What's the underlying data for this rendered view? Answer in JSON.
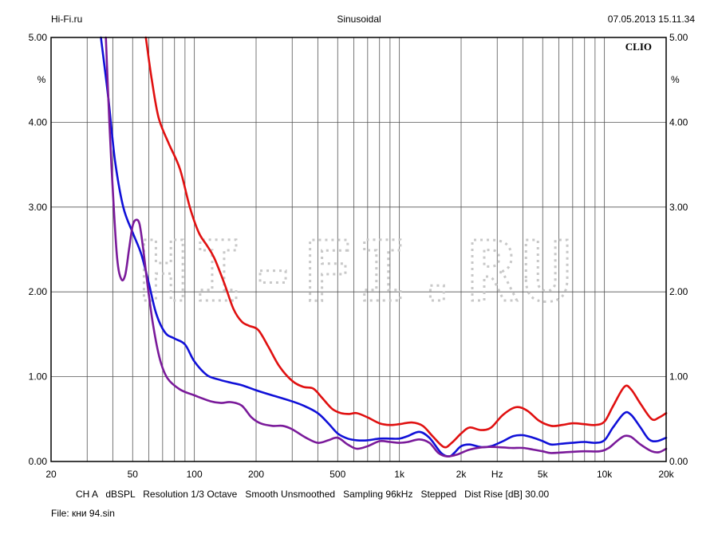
{
  "header": {
    "site": "Hi-Fi.ru",
    "mode": "Sinusoidal",
    "datetime": "07.05.2013 15.11.34"
  },
  "brand_label": "CLIO",
  "watermark_text": "HI-FI.RU",
  "footer": {
    "line1": "CH A   dBSPL   Resolution 1/3 Octave   Smooth Unsmoothed   Sampling 96kHz   Stepped   Dist Rise [dB] 30.00",
    "file": "File: кни 94.sin"
  },
  "chart_data": {
    "type": "line",
    "title": "",
    "xlabel": "Hz",
    "ylabel": "%",
    "x_scale": "log",
    "xlim": [
      20,
      20000
    ],
    "ylim": [
      0,
      5
    ],
    "grid": true,
    "x_ticks": [
      {
        "value": 20,
        "label": "20"
      },
      {
        "value": 50,
        "label": "50"
      },
      {
        "value": 100,
        "label": "100"
      },
      {
        "value": 200,
        "label": "200"
      },
      {
        "value": 500,
        "label": "500"
      },
      {
        "value": 1000,
        "label": "1k"
      },
      {
        "value": 2000,
        "label": "2k"
      },
      {
        "value": 3000,
        "label": "Hz"
      },
      {
        "value": 5000,
        "label": "5k"
      },
      {
        "value": 10000,
        "label": "10k"
      },
      {
        "value": 20000,
        "label": "20k"
      }
    ],
    "y_ticks": [
      {
        "value": 0,
        "label": "0.00"
      },
      {
        "value": 1,
        "label": "1.00"
      },
      {
        "value": 2,
        "label": "2.00"
      },
      {
        "value": 3,
        "label": "3.00"
      },
      {
        "value": 4,
        "label": "4.00"
      },
      {
        "value": 4.5,
        "label": "%"
      },
      {
        "value": 5,
        "label": "5.00"
      }
    ],
    "series": [
      {
        "color": "#e01010",
        "points": [
          [
            58,
            5.0
          ],
          [
            62,
            4.5
          ],
          [
            67,
            4.05
          ],
          [
            75,
            3.75
          ],
          [
            85,
            3.45
          ],
          [
            95,
            3.0
          ],
          [
            105,
            2.7
          ],
          [
            115,
            2.55
          ],
          [
            125,
            2.4
          ],
          [
            140,
            2.1
          ],
          [
            155,
            1.8
          ],
          [
            170,
            1.65
          ],
          [
            185,
            1.6
          ],
          [
            205,
            1.55
          ],
          [
            230,
            1.35
          ],
          [
            260,
            1.12
          ],
          [
            300,
            0.95
          ],
          [
            340,
            0.88
          ],
          [
            380,
            0.86
          ],
          [
            420,
            0.75
          ],
          [
            470,
            0.62
          ],
          [
            520,
            0.57
          ],
          [
            570,
            0.56
          ],
          [
            620,
            0.57
          ],
          [
            700,
            0.52
          ],
          [
            800,
            0.45
          ],
          [
            900,
            0.43
          ],
          [
            1000,
            0.44
          ],
          [
            1150,
            0.46
          ],
          [
            1300,
            0.42
          ],
          [
            1450,
            0.3
          ],
          [
            1650,
            0.17
          ],
          [
            1800,
            0.22
          ],
          [
            2000,
            0.33
          ],
          [
            2200,
            0.4
          ],
          [
            2500,
            0.37
          ],
          [
            2800,
            0.4
          ],
          [
            3200,
            0.55
          ],
          [
            3700,
            0.64
          ],
          [
            4200,
            0.6
          ],
          [
            4800,
            0.48
          ],
          [
            5500,
            0.42
          ],
          [
            6200,
            0.43
          ],
          [
            7000,
            0.45
          ],
          [
            8000,
            0.44
          ],
          [
            9000,
            0.43
          ],
          [
            10000,
            0.47
          ],
          [
            11000,
            0.65
          ],
          [
            12500,
            0.88
          ],
          [
            13500,
            0.85
          ],
          [
            15000,
            0.68
          ],
          [
            17000,
            0.5
          ],
          [
            18500,
            0.52
          ],
          [
            20000,
            0.57
          ]
        ]
      },
      {
        "color": "#1010d8",
        "points": [
          [
            35,
            5.0
          ],
          [
            38,
            4.3
          ],
          [
            41,
            3.55
          ],
          [
            45,
            3.0
          ],
          [
            50,
            2.7
          ],
          [
            55,
            2.45
          ],
          [
            60,
            2.1
          ],
          [
            65,
            1.75
          ],
          [
            72,
            1.52
          ],
          [
            80,
            1.45
          ],
          [
            90,
            1.38
          ],
          [
            100,
            1.18
          ],
          [
            115,
            1.02
          ],
          [
            130,
            0.97
          ],
          [
            150,
            0.93
          ],
          [
            170,
            0.9
          ],
          [
            200,
            0.84
          ],
          [
            240,
            0.78
          ],
          [
            290,
            0.72
          ],
          [
            340,
            0.66
          ],
          [
            400,
            0.57
          ],
          [
            450,
            0.45
          ],
          [
            500,
            0.33
          ],
          [
            560,
            0.27
          ],
          [
            620,
            0.25
          ],
          [
            700,
            0.25
          ],
          [
            800,
            0.27
          ],
          [
            900,
            0.27
          ],
          [
            1000,
            0.27
          ],
          [
            1100,
            0.3
          ],
          [
            1250,
            0.35
          ],
          [
            1400,
            0.28
          ],
          [
            1600,
            0.1
          ],
          [
            1750,
            0.06
          ],
          [
            1850,
            0.1
          ],
          [
            2000,
            0.18
          ],
          [
            2200,
            0.2
          ],
          [
            2500,
            0.17
          ],
          [
            2800,
            0.18
          ],
          [
            3200,
            0.24
          ],
          [
            3600,
            0.3
          ],
          [
            4000,
            0.31
          ],
          [
            4500,
            0.28
          ],
          [
            5000,
            0.24
          ],
          [
            5500,
            0.2
          ],
          [
            6200,
            0.21
          ],
          [
            7000,
            0.22
          ],
          [
            8000,
            0.23
          ],
          [
            9000,
            0.22
          ],
          [
            10000,
            0.25
          ],
          [
            11000,
            0.4
          ],
          [
            12500,
            0.57
          ],
          [
            13500,
            0.55
          ],
          [
            15000,
            0.4
          ],
          [
            16500,
            0.26
          ],
          [
            18000,
            0.24
          ],
          [
            20000,
            0.28
          ]
        ]
      },
      {
        "color": "#7a1a9a",
        "points": [
          [
            37,
            5.0
          ],
          [
            38.5,
            4.0
          ],
          [
            40,
            3.2
          ],
          [
            42,
            2.4
          ],
          [
            44,
            2.15
          ],
          [
            46,
            2.2
          ],
          [
            48,
            2.5
          ],
          [
            50,
            2.78
          ],
          [
            52,
            2.85
          ],
          [
            54,
            2.8
          ],
          [
            56,
            2.55
          ],
          [
            59,
            2.1
          ],
          [
            63,
            1.6
          ],
          [
            68,
            1.2
          ],
          [
            74,
            0.98
          ],
          [
            85,
            0.85
          ],
          [
            100,
            0.78
          ],
          [
            120,
            0.71
          ],
          [
            135,
            0.69
          ],
          [
            150,
            0.7
          ],
          [
            170,
            0.66
          ],
          [
            190,
            0.52
          ],
          [
            210,
            0.45
          ],
          [
            240,
            0.42
          ],
          [
            270,
            0.42
          ],
          [
            300,
            0.38
          ],
          [
            350,
            0.28
          ],
          [
            400,
            0.22
          ],
          [
            450,
            0.25
          ],
          [
            500,
            0.28
          ],
          [
            560,
            0.2
          ],
          [
            620,
            0.15
          ],
          [
            700,
            0.18
          ],
          [
            800,
            0.24
          ],
          [
            900,
            0.23
          ],
          [
            1000,
            0.22
          ],
          [
            1100,
            0.23
          ],
          [
            1250,
            0.26
          ],
          [
            1400,
            0.22
          ],
          [
            1550,
            0.1
          ],
          [
            1700,
            0.06
          ],
          [
            1900,
            0.08
          ],
          [
            2200,
            0.14
          ],
          [
            2600,
            0.17
          ],
          [
            3000,
            0.17
          ],
          [
            3500,
            0.16
          ],
          [
            4000,
            0.16
          ],
          [
            4500,
            0.14
          ],
          [
            5000,
            0.12
          ],
          [
            5500,
            0.1
          ],
          [
            6500,
            0.11
          ],
          [
            8000,
            0.12
          ],
          [
            9500,
            0.12
          ],
          [
            10500,
            0.16
          ],
          [
            11500,
            0.24
          ],
          [
            12500,
            0.3
          ],
          [
            13500,
            0.29
          ],
          [
            15000,
            0.2
          ],
          [
            17000,
            0.12
          ],
          [
            18500,
            0.11
          ],
          [
            20000,
            0.15
          ]
        ]
      }
    ]
  }
}
